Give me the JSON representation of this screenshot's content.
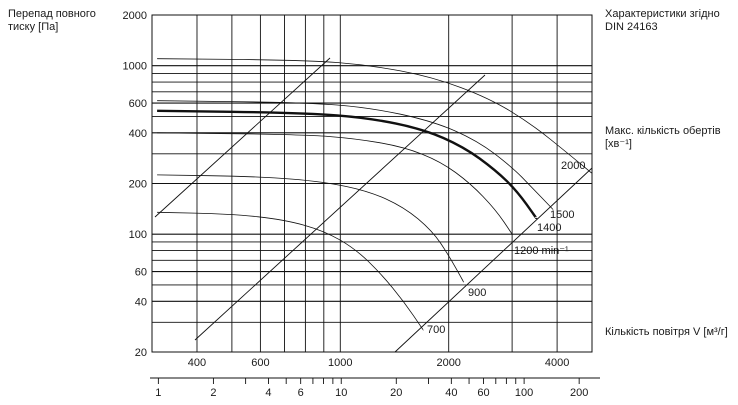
{
  "chart_data": {
    "type": "line",
    "title": "Характеристики згідно DIN 24163",
    "ylabel": "Перепад повного тиску [Па]",
    "xlabel": "Кількість повітря V [м³/г]",
    "secondary_label": "Макс. кількість обертів [хв⁻¹]",
    "y_scale": "log",
    "x_scale": "log",
    "ylim": [
      20,
      2000
    ],
    "xlim": [
      300,
      5000
    ],
    "y_ticks": [
      20,
      40,
      60,
      100,
      200,
      400,
      600,
      1000,
      2000
    ],
    "x_ticks": [
      400,
      600,
      1000,
      2000,
      4000
    ],
    "x2_ticks": [
      1,
      2,
      4,
      6,
      10,
      20,
      40,
      60,
      100,
      200
    ],
    "speed_labels": [
      "2000",
      "1500",
      "1400",
      "1200 min⁻¹",
      "900",
      "700"
    ],
    "series": [
      {
        "name": "2000",
        "x": [
          310,
          800,
          1200,
          1800,
          2600,
          3400,
          4300,
          5000
        ],
        "y": [
          1100,
          1080,
          1010,
          860,
          640,
          450,
          300,
          230
        ]
      },
      {
        "name": "1500",
        "x": [
          310,
          800,
          1200,
          1800,
          2400,
          3000,
          3400,
          3900
        ],
        "y": [
          620,
          605,
          565,
          470,
          360,
          250,
          190,
          140
        ]
      },
      {
        "name": "1400",
        "x": [
          310,
          800,
          1200,
          1700,
          2200,
          2700,
          3100,
          3500
        ],
        "y": [
          540,
          525,
          490,
          420,
          330,
          240,
          180,
          125
        ],
        "highlight": true
      },
      {
        "name": "1200",
        "x": [
          310,
          800,
          1100,
          1500,
          1900,
          2300,
          2700,
          3000
        ],
        "y": [
          400,
          390,
          370,
          330,
          270,
          200,
          140,
          100
        ]
      },
      {
        "name": "900",
        "x": [
          310,
          600,
          900,
          1200,
          1500,
          1800,
          2000,
          2200
        ],
        "y": [
          225,
          220,
          205,
          180,
          145,
          105,
          75,
          52
        ]
      },
      {
        "name": "700",
        "x": [
          310,
          500,
          700,
          900,
          1100,
          1300,
          1500,
          1700
        ],
        "y": [
          135,
          132,
          122,
          105,
          82,
          58,
          40,
          27
        ]
      }
    ],
    "grid": true,
    "legend": "none"
  }
}
